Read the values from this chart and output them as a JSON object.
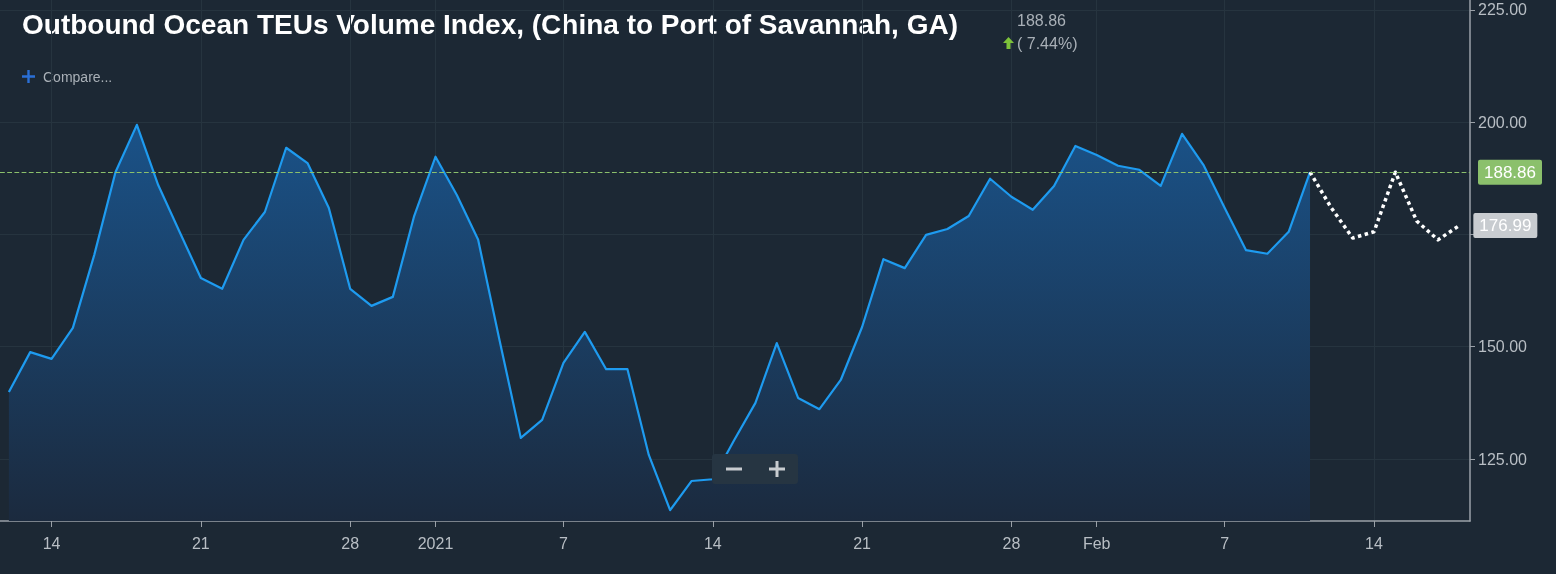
{
  "chart_data": {
    "type": "area",
    "title": "Outbound Ocean TEUs Volume Index, (China to Port of Savannah, GA)",
    "annotations": [
      "188.86",
      "( 7.44%)",
      "Compare...",
      {
        "text": "176.99",
        "x": "2021-02-18",
        "y": 176.99
      }
    ],
    "x": [
      "2020-12-12",
      "2020-12-13",
      "2020-12-14",
      "2020-12-15",
      "2020-12-16",
      "2020-12-17",
      "2020-12-18",
      "2020-12-19",
      "2020-12-20",
      "2020-12-21",
      "2020-12-22",
      "2020-12-23",
      "2020-12-24",
      "2020-12-25",
      "2020-12-26",
      "2020-12-27",
      "2020-12-28",
      "2020-12-29",
      "2020-12-30",
      "2020-12-31",
      "2021-01-01",
      "2021-01-02",
      "2021-01-03",
      "2021-01-04",
      "2021-01-05",
      "2021-01-06",
      "2021-01-07",
      "2021-01-08",
      "2021-01-09",
      "2021-01-10",
      "2021-01-11",
      "2021-01-12",
      "2021-01-13",
      "2021-01-14",
      "2021-01-15",
      "2021-01-16",
      "2021-01-17",
      "2021-01-18",
      "2021-01-19",
      "2021-01-20",
      "2021-01-21",
      "2021-01-22",
      "2021-01-23",
      "2021-01-24",
      "2021-01-25",
      "2021-01-26",
      "2021-01-27",
      "2021-01-28",
      "2021-01-29",
      "2021-01-30",
      "2021-01-31",
      "2021-02-01",
      "2021-02-02",
      "2021-02-03",
      "2021-02-04",
      "2021-02-05",
      "2021-02-06",
      "2021-02-07",
      "2021-02-08",
      "2021-02-09",
      "2021-02-10",
      "2021-02-11"
    ],
    "series": [
      {
        "color": "#1e9bf0",
        "line_style": "solid",
        "values": [
          139.9,
          148.8,
          147.3,
          154.2,
          170.4,
          188.9,
          199.4,
          186.0,
          175.6,
          165.3,
          162.9,
          173.8,
          180.0,
          194.3,
          190.9,
          180.9,
          162.9,
          159.1,
          161.1,
          179.1,
          192.3,
          183.8,
          173.8,
          151.5,
          129.7,
          133.7,
          146.4,
          153.3,
          145.0,
          145.0,
          125.9,
          113.6,
          120.1,
          120.5,
          129.2,
          137.5,
          150.8,
          138.6,
          136.1,
          142.6,
          154.4,
          169.5,
          167.5,
          174.9,
          176.2,
          179.1,
          187.4,
          183.4,
          180.5,
          185.8,
          194.7,
          192.7,
          190.3,
          189.4,
          185.8,
          197.4,
          190.5,
          180.9,
          171.5,
          170.7,
          175.6,
          188.86
        ]
      },
      {
        "type": "line",
        "color": "#ffffff",
        "line_style": "dotted",
        "x": [
          "2021-02-11",
          "2021-02-12",
          "2021-02-13",
          "2021-02-14",
          "2021-02-15",
          "2021-02-16",
          "2021-02-17",
          "2021-02-18"
        ],
        "values": [
          188.86,
          180.9,
          174.2,
          175.6,
          188.86,
          178.0,
          173.8,
          176.99
        ]
      }
    ],
    "xlim": [
      "2020-12-11T14:00",
      "2021-02-18T12:00"
    ],
    "xticks": [
      {
        "value": "2020-12-14",
        "label": "14"
      },
      {
        "value": "2020-12-21",
        "label": "21"
      },
      {
        "value": "2020-12-28",
        "label": "28"
      },
      {
        "value": "2021-01-01",
        "label": "2021"
      },
      {
        "value": "2021-01-07",
        "label": "7"
      },
      {
        "value": "2021-01-14",
        "label": "14"
      },
      {
        "value": "2021-01-21",
        "label": "21"
      },
      {
        "value": "2021-01-28",
        "label": "28"
      },
      {
        "value": "2021-02-01",
        "label": "Feb"
      },
      {
        "value": "2021-02-07",
        "label": "7"
      },
      {
        "value": "2021-02-14",
        "label": "14"
      }
    ],
    "ylim": [
      111.2,
      227.2
    ],
    "yticks": [
      {
        "value": 125,
        "label": "125.00"
      },
      {
        "value": 150,
        "label": "150.00"
      },
      {
        "value": 175,
        "label": null
      },
      {
        "value": 200,
        "label": "200.00"
      },
      {
        "value": 225,
        "label": "225.00"
      }
    ],
    "ref_lines": [
      {
        "axis": "y",
        "value": 188.86,
        "label": "188.86",
        "color": "#8bc06c",
        "line_style": "dashed"
      }
    ],
    "grid": true,
    "marker": "none"
  }
}
